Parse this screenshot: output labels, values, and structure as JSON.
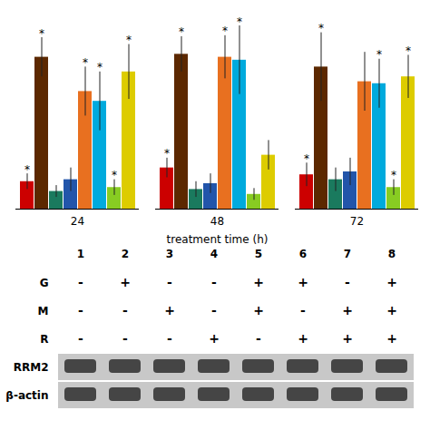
{
  "chart_data": {
    "type": "bar",
    "xlabel": "treatment time (h)",
    "categories": [
      "24",
      "48",
      "72"
    ],
    "series": [
      {
        "color": "#cc0000",
        "values": [
          0.28,
          0.42,
          0.35
        ],
        "errors": [
          0.08,
          0.1,
          0.12
        ],
        "annotations": [
          "*",
          "*",
          "*"
        ]
      },
      {
        "color": "#5c2800",
        "values": [
          1.55,
          1.58,
          1.45
        ],
        "errors": [
          0.2,
          0.18,
          0.35
        ],
        "annotations": [
          "*",
          "*",
          "*"
        ]
      },
      {
        "color": "#1a7a5e",
        "values": [
          0.18,
          0.2,
          0.3
        ],
        "errors": [
          0.06,
          0.08,
          0.12
        ],
        "annotations": [
          null,
          null,
          null
        ]
      },
      {
        "color": "#2255aa",
        "values": [
          0.3,
          0.26,
          0.38
        ],
        "errors": [
          0.12,
          0.1,
          0.14
        ],
        "annotations": [
          null,
          null,
          null
        ]
      },
      {
        "color": "#e87020",
        "values": [
          1.2,
          1.55,
          1.3
        ],
        "errors": [
          0.25,
          0.22,
          0.3
        ],
        "annotations": [
          "*",
          "*",
          null
        ]
      },
      {
        "color": "#00aadd",
        "values": [
          1.1,
          1.52,
          1.28
        ],
        "errors": [
          0.3,
          0.35,
          0.25
        ],
        "annotations": [
          "*",
          "*",
          "*"
        ]
      },
      {
        "color": "#88cc22",
        "values": [
          0.22,
          0.15,
          0.22
        ],
        "errors": [
          0.08,
          0.06,
          0.08
        ],
        "annotations": [
          "*",
          null,
          "*"
        ]
      },
      {
        "color": "#ddcc00",
        "values": [
          1.4,
          0.55,
          1.35
        ],
        "errors": [
          0.28,
          0.15,
          0.22
        ],
        "annotations": [
          "*",
          null,
          "*"
        ]
      }
    ],
    "ylim": [
      0,
      2.0
    ],
    "tick_labels": "x",
    "table": {
      "columns": [
        "1",
        "2",
        "3",
        "4",
        "5",
        "6",
        "7",
        "8"
      ],
      "rows": [
        "G",
        "M",
        "R"
      ],
      "cells": [
        [
          "-",
          "+",
          "-",
          "-",
          "+",
          "+",
          "-",
          "+"
        ],
        [
          "-",
          "-",
          "+",
          "-",
          "+",
          "-",
          "+",
          "+"
        ],
        [
          "-",
          "-",
          "-",
          "+",
          "-",
          "+",
          "+",
          "+"
        ]
      ]
    },
    "blot_labels": [
      "RRM2",
      "β-actin"
    ]
  }
}
